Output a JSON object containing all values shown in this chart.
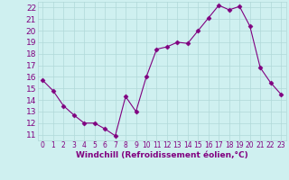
{
  "x": [
    0,
    1,
    2,
    3,
    4,
    5,
    6,
    7,
    8,
    9,
    10,
    11,
    12,
    13,
    14,
    15,
    16,
    17,
    18,
    19,
    20,
    21,
    22,
    23
  ],
  "y": [
    15.7,
    14.8,
    13.5,
    12.7,
    12.0,
    12.0,
    11.5,
    10.9,
    14.3,
    13.0,
    16.0,
    18.4,
    18.6,
    19.0,
    18.9,
    20.0,
    21.1,
    22.2,
    21.8,
    22.1,
    20.4,
    16.8,
    15.5,
    14.5
  ],
  "xlim": [
    -0.5,
    23.5
  ],
  "ylim": [
    10.5,
    22.5
  ],
  "yticks": [
    11,
    12,
    13,
    14,
    15,
    16,
    17,
    18,
    19,
    20,
    21,
    22
  ],
  "xticks": [
    0,
    1,
    2,
    3,
    4,
    5,
    6,
    7,
    8,
    9,
    10,
    11,
    12,
    13,
    14,
    15,
    16,
    17,
    18,
    19,
    20,
    21,
    22,
    23
  ],
  "xlabel": "Windchill (Refroidissement éolien,°C)",
  "line_color": "#800080",
  "marker": "D",
  "marker_size": 2.5,
  "bg_color": "#cff0f0",
  "grid_color": "#b0d8d8",
  "font_color": "#800080",
  "xlabel_fontsize": 6.5,
  "xtick_fontsize": 5.5,
  "ytick_fontsize": 6.5
}
